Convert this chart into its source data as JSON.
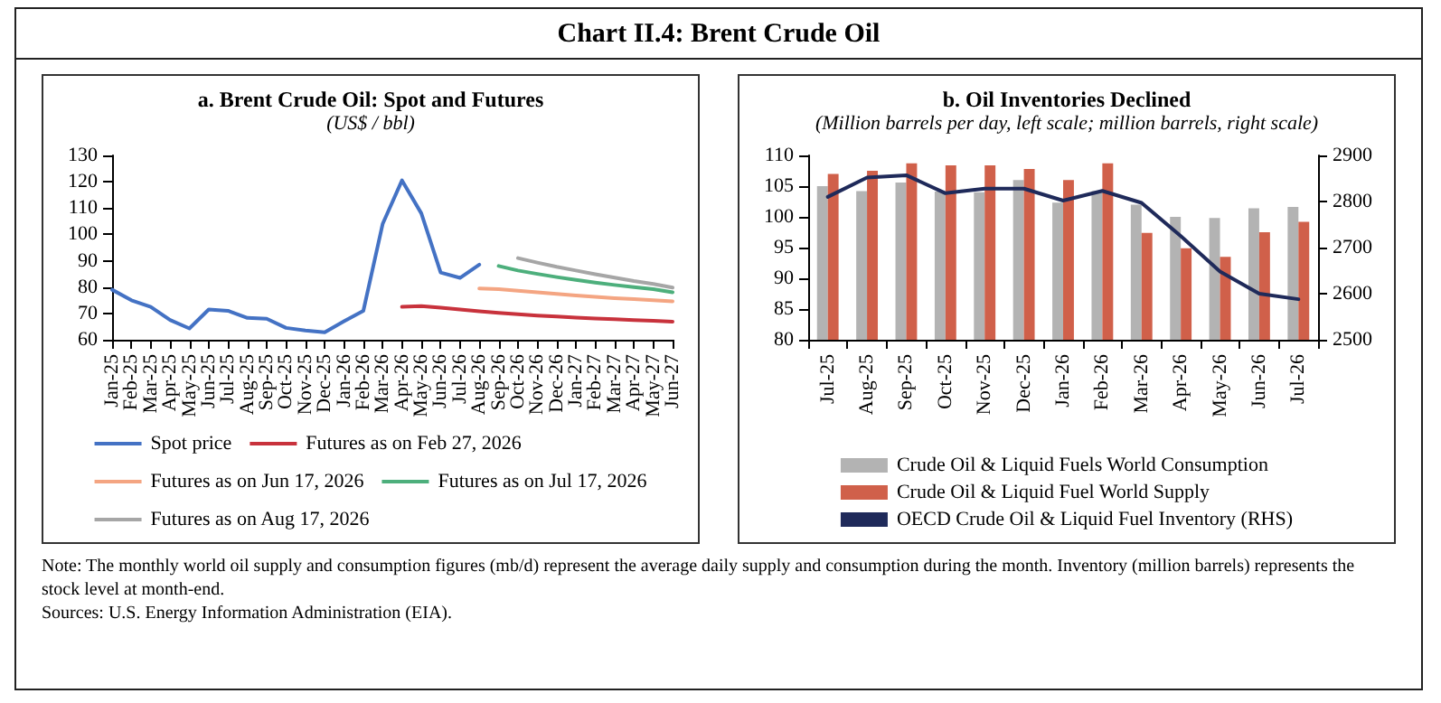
{
  "chart_data": [
    {
      "type": "line",
      "title": "a. Brent Crude Oil: Spot and Futures",
      "subtitle": "(US$ / bbl)",
      "annotations": [
        "Chart II.4: Brent Crude Oil"
      ],
      "categories": [
        "Jan-25",
        "Feb-25",
        "Mar-25",
        "Apr-25",
        "May-25",
        "Jun-25",
        "Jul-25",
        "Aug-25",
        "Sep-25",
        "Oct-25",
        "Nov-25",
        "Dec-25",
        "Jan-26",
        "Feb-26",
        "Mar-26",
        "Apr-26",
        "May-26",
        "Jun-26",
        "Jul-26",
        "Aug-26",
        "Sep-26",
        "Oct-26",
        "Nov-26",
        "Dec-26",
        "Jan-27",
        "Feb-27",
        "Mar-27",
        "Apr-27",
        "May-27",
        "Jun-27"
      ],
      "series": [
        {
          "name": "Spot price",
          "color": "#4472c4",
          "values": [
            79,
            75,
            72.5,
            67.5,
            64.3,
            71.5,
            71,
            68.3,
            68,
            64.5,
            63.5,
            62.8,
            67,
            71,
            104,
            120.5,
            108,
            85.5,
            83.5,
            88.5,
            null,
            null,
            null,
            null,
            null,
            null,
            null,
            null,
            null,
            null
          ]
        },
        {
          "name": "Futures as on Feb 27, 2026",
          "color": "#c8323c",
          "values": [
            null,
            null,
            null,
            null,
            null,
            null,
            null,
            null,
            null,
            null,
            null,
            null,
            null,
            null,
            null,
            72.5,
            72.8,
            72.2,
            71.5,
            70.8,
            70.2,
            69.7,
            69.2,
            68.8,
            68.4,
            68.1,
            67.8,
            67.5,
            67.2,
            66.9
          ]
        },
        {
          "name": "Futures as on Jun 17, 2026",
          "color": "#f4a582",
          "values": [
            null,
            null,
            null,
            null,
            null,
            null,
            null,
            null,
            null,
            null,
            null,
            null,
            null,
            null,
            null,
            null,
            null,
            null,
            null,
            79.5,
            79.2,
            78.6,
            78,
            77.4,
            76.8,
            76.3,
            75.8,
            75.4,
            75,
            74.6
          ]
        },
        {
          "name": "Futures as on Jul 17, 2026",
          "color": "#4daf7c",
          "values": [
            null,
            null,
            null,
            null,
            null,
            null,
            null,
            null,
            null,
            null,
            null,
            null,
            null,
            null,
            null,
            null,
            null,
            null,
            null,
            null,
            88,
            86.3,
            85,
            83.8,
            82.7,
            81.7,
            80.8,
            80,
            79.2,
            78
          ]
        },
        {
          "name": "Futures as on Aug 17, 2026",
          "color": "#a6a6a6",
          "values": [
            null,
            null,
            null,
            null,
            null,
            null,
            null,
            null,
            null,
            null,
            null,
            null,
            null,
            null,
            null,
            null,
            null,
            null,
            null,
            null,
            null,
            91,
            89.3,
            87.7,
            86.3,
            84.9,
            83.6,
            82.3,
            81.2,
            79.8
          ]
        }
      ],
      "ylim": [
        60,
        130
      ],
      "yticks": [
        60,
        70,
        80,
        90,
        100,
        110,
        120,
        130
      ],
      "legend": "bottom"
    },
    {
      "type": "bar",
      "title": "b. Oil Inventories Declined",
      "subtitle": "(Million barrels per day, left scale; million barrels, right scale)",
      "annotations": [
        "Note: The monthly world oil supply and consumption figures (mb/d) represent the average daily supply and consumption during the month. Inventory (million barrels) represents the stock level at month-end.",
        "Sources: U.S. Energy Information Administration (EIA)."
      ],
      "categories": [
        "Jul-25",
        "Aug-25",
        "Sep-25",
        "Oct-25",
        "Nov-25",
        "Dec-25",
        "Jan-26",
        "Feb-26",
        "Mar-26",
        "Apr-26",
        "May-26",
        "Jun-26",
        "Jul-26"
      ],
      "series": [
        {
          "name": "Crude Oil & Liquid Fuels World Consumption",
          "type": "bar",
          "color": "#b3b3b3",
          "values": [
            105,
            104.2,
            105.6,
            104.1,
            104,
            106,
            102.3,
            104.2,
            102,
            100,
            99.8,
            101.4,
            101.6
          ]
        },
        {
          "name": "Crude Oil & Liquid Fuel World Supply",
          "type": "bar",
          "color": "#d0604a",
          "values": [
            107,
            107.5,
            108.7,
            108.4,
            108.4,
            107.8,
            106,
            108.7,
            97.4,
            94.9,
            93.5,
            97.5,
            99.2
          ]
        },
        {
          "name": "OECD Crude Oil & Liquid Fuel Inventory (RHS)",
          "type": "line",
          "axis": "y2",
          "color": "#1f2a5a",
          "values": [
            2810,
            2852,
            2857,
            2818,
            2828,
            2828,
            2802,
            2823,
            2797,
            2725,
            2648,
            2600,
            2588
          ]
        }
      ],
      "ylim": [
        80,
        110
      ],
      "yticks": [
        80,
        85,
        90,
        95,
        100,
        105,
        110
      ],
      "y2lim": [
        2500,
        2900
      ],
      "y2ticks": [
        2500,
        2600,
        2700,
        2800,
        2900
      ],
      "legend": "bottom"
    }
  ]
}
